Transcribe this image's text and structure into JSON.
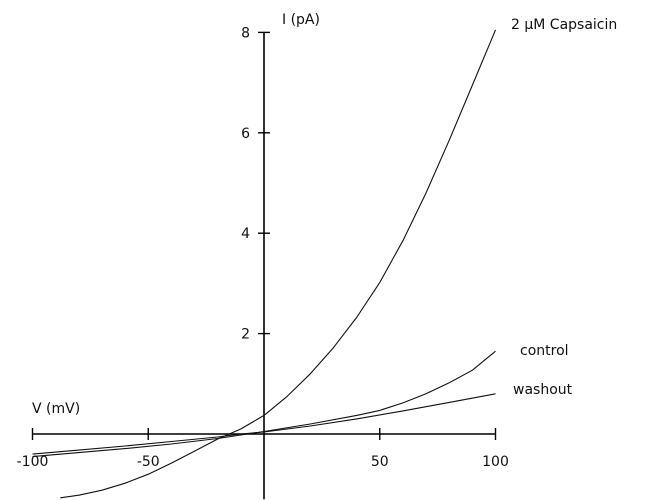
{
  "chart_data": {
    "type": "line",
    "title": "",
    "xlabel": "V (mV)",
    "ylabel": "I (pA)",
    "xlim": [
      -100,
      100
    ],
    "ylim": [
      -1.3,
      8
    ],
    "xticks": [
      -100,
      -50,
      0,
      50,
      100
    ],
    "xtick_labels": [
      "-100",
      "-50",
      "",
      "50",
      "100"
    ],
    "yticks": [
      0,
      2,
      4,
      6,
      8
    ],
    "ytick_labels": [
      "",
      "2",
      "4",
      "6",
      "8"
    ],
    "grid": false,
    "legend": "inline labels at line ends",
    "colors": {
      "axis": "#000000",
      "line": "#111111"
    },
    "series": [
      {
        "name": "2 µM Capsaicin",
        "x": [
          -88,
          -80,
          -70,
          -60,
          -50,
          -40,
          -30,
          -20,
          -10,
          0,
          10,
          20,
          30,
          40,
          50,
          60,
          70,
          80,
          90,
          100
        ],
        "y": [
          -1.27,
          -1.22,
          -1.12,
          -0.98,
          -0.8,
          -0.58,
          -0.34,
          -0.1,
          0.1,
          0.37,
          0.75,
          1.2,
          1.72,
          2.32,
          3.02,
          3.85,
          4.8,
          5.85,
          6.95,
          8.05
        ]
      },
      {
        "name": "control",
        "x": [
          -100,
          -80,
          -60,
          -40,
          -20,
          -10,
          0,
          20,
          40,
          50,
          60,
          70,
          80,
          90,
          100
        ],
        "y": [
          -0.45,
          -0.37,
          -0.29,
          -0.2,
          -0.09,
          -0.02,
          0.05,
          0.2,
          0.37,
          0.47,
          0.62,
          0.8,
          1.02,
          1.27,
          1.65
        ]
      },
      {
        "name": "washout",
        "x": [
          -100,
          -80,
          -60,
          -40,
          -20,
          -10,
          0,
          20,
          40,
          60,
          80,
          100
        ],
        "y": [
          -0.4,
          -0.32,
          -0.24,
          -0.15,
          -0.06,
          0.0,
          0.04,
          0.16,
          0.3,
          0.46,
          0.63,
          0.8
        ]
      }
    ]
  }
}
